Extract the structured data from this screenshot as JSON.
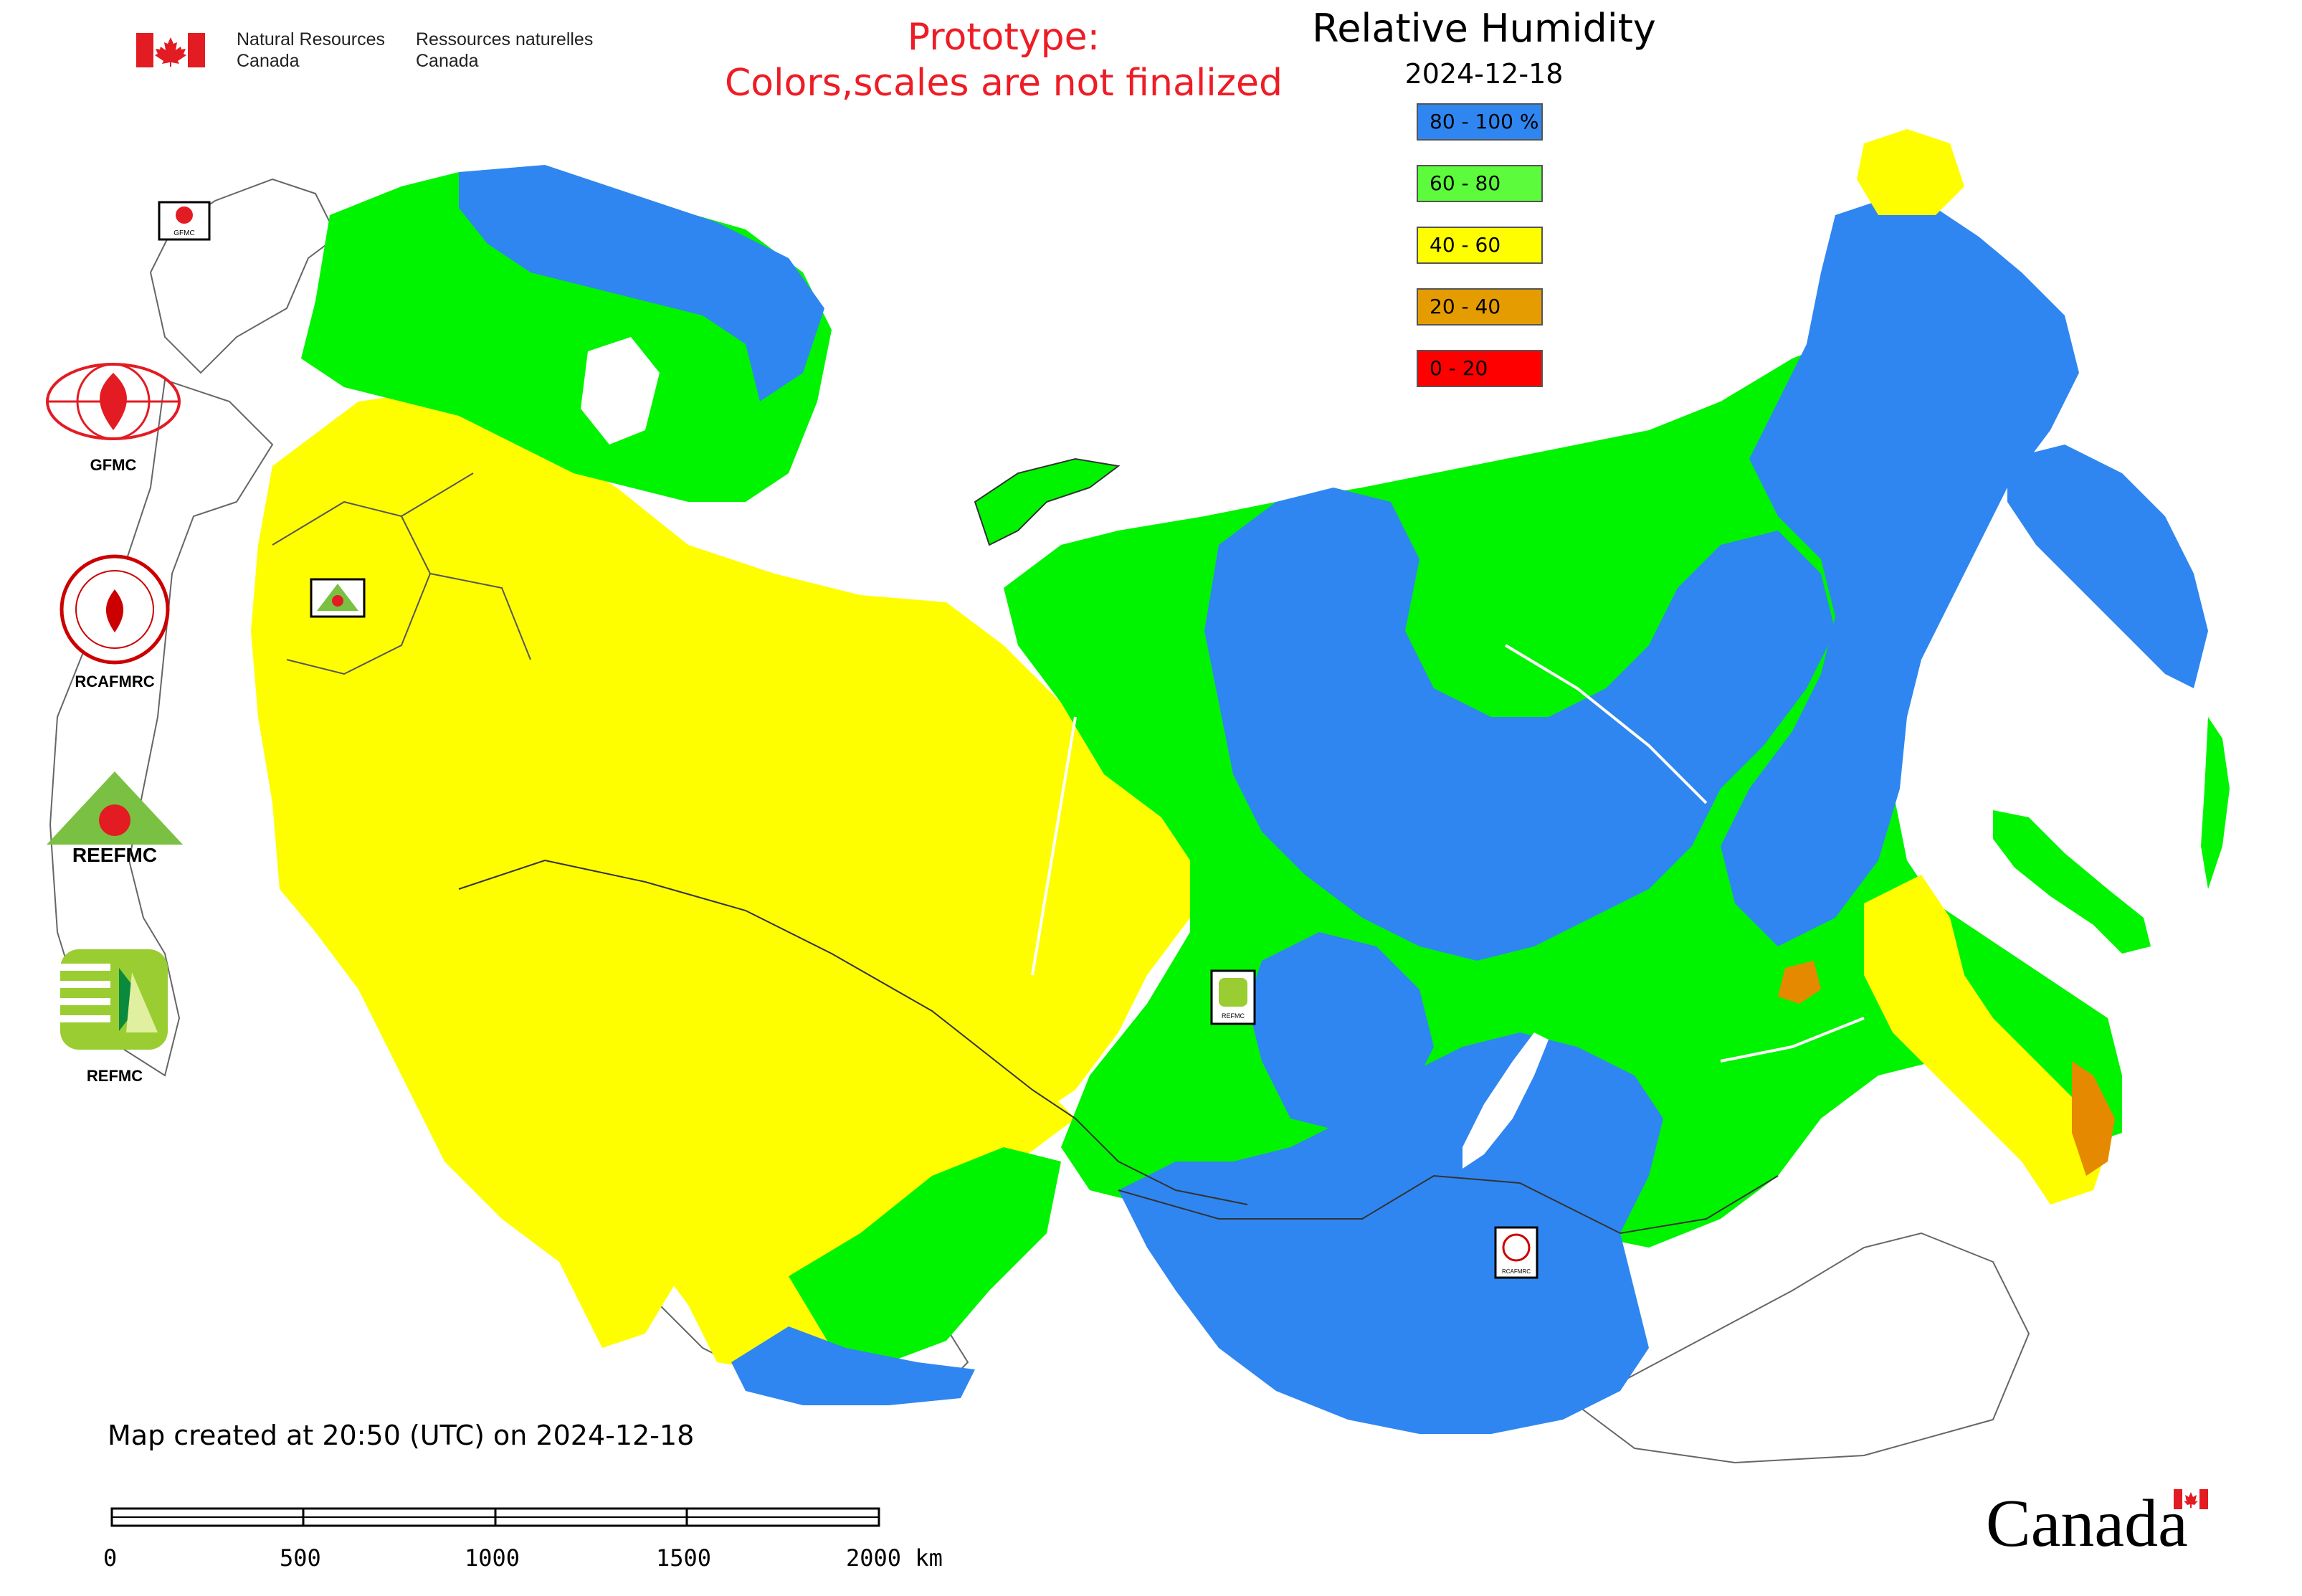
{
  "header": {
    "org_en": "Natural Resources\nCanada",
    "org_en_line1": "Natural Resources",
    "org_en_line2": "Canada",
    "org_fr_line1": "Ressources naturelles",
    "org_fr_line2": "Canada"
  },
  "prototype": {
    "line1": "Prototype:",
    "line2": "Colors,scales are not finalized"
  },
  "legend": {
    "title": "Relative Humidity",
    "date": "2024-12-18",
    "entries": [
      {
        "label": "80 - 100 %",
        "color": "#2f86f0"
      },
      {
        "label": "60 - 80",
        "color": "#5cfc3c"
      },
      {
        "label": "40 - 60",
        "color": "#fefe00"
      },
      {
        "label": "20 - 40",
        "color": "#e59c00"
      },
      {
        "label": "0 - 20",
        "color": "#ff0000"
      }
    ]
  },
  "map_colors": {
    "blue": "#2f86f0",
    "green": "#00f400",
    "yellow": "#fefe00",
    "orange": "#e58a00",
    "water": "#ffffff",
    "border": "#333333"
  },
  "logos": {
    "gfmc": "GFMC",
    "rcafmrc": "RCAFMRC",
    "reefmc": "REEFMC",
    "refmc": "REFMC",
    "map_gfmc": "GFMC",
    "map_refmc": "REFMC",
    "map_rcafmrc": "RCAFMRC"
  },
  "footer": {
    "created": "Map created at 20:50 (UTC) on 2024-12-18",
    "scale_ticks": [
      "0",
      "500",
      "1000",
      "1500",
      "2000 km"
    ],
    "wordmark": "Canada"
  }
}
